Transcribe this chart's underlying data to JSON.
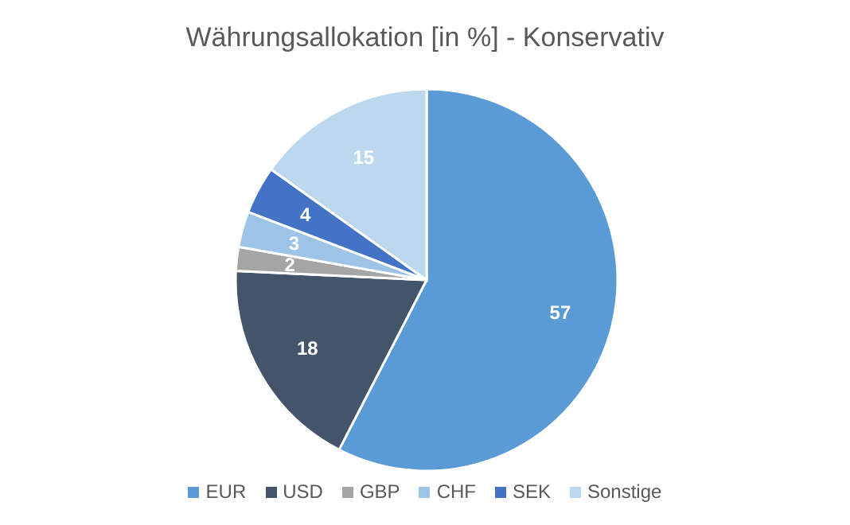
{
  "chart_data": {
    "type": "pie",
    "title": "Währungsallokation [in %] - Konservativ",
    "categories": [
      "EUR",
      "USD",
      "GBP",
      "CHF",
      "SEK",
      "Sonstige"
    ],
    "values": [
      57,
      18,
      2,
      3,
      4,
      15
    ],
    "colors": [
      "#5b9bd5",
      "#44546a",
      "#a5a5a5",
      "#9dc3e6",
      "#4472c4",
      "#bdd7ee"
    ],
    "data_labels": true,
    "legend": "bottom"
  }
}
